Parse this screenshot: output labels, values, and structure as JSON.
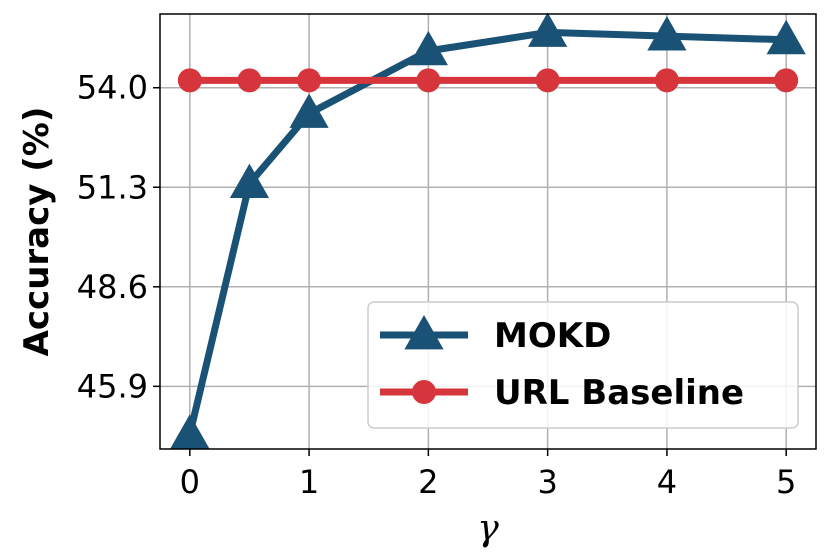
{
  "chart_data": {
    "type": "line",
    "xlabel": "γ",
    "ylabel": "Accuracy (%)",
    "x_ticks": [
      "0",
      "1",
      "2",
      "3",
      "4",
      "5"
    ],
    "y_ticks": [
      "45.9",
      "48.6",
      "51.3",
      "54.0"
    ],
    "xlim": [
      -0.25,
      5.25
    ],
    "ylim": [
      44.2,
      56.0
    ],
    "grid": true,
    "legend_position": "lower-right",
    "series": [
      {
        "name": "MOKD",
        "color": "#1a5276",
        "marker": "triangle",
        "x": [
          0,
          0.5,
          1,
          2,
          3,
          4,
          5
        ],
        "y": [
          44.6,
          51.4,
          53.3,
          55.0,
          55.5,
          55.4,
          55.3
        ]
      },
      {
        "name": "URL Baseline",
        "color": "#d6363b",
        "marker": "circle",
        "x": [
          0,
          0.5,
          1,
          2,
          3,
          4,
          5
        ],
        "y": [
          54.2,
          54.2,
          54.2,
          54.2,
          54.2,
          54.2,
          54.2
        ]
      }
    ]
  }
}
